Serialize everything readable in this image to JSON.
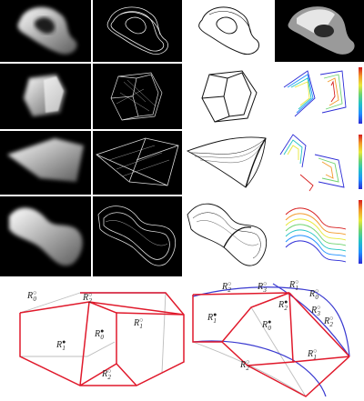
{
  "colors": {
    "cell_background": "#000000",
    "paper": "#ffffff",
    "partition_edge_red": "#e0192b",
    "partition_edge_blue": "#3a3ad0",
    "faint_edge_gray": "#bdbdbd",
    "colorbar": [
      "#2b2bd6",
      "#1e90ff",
      "#22c3c3",
      "#6fd36f",
      "#e8e83a",
      "#f39a2a",
      "#d71f1f"
    ]
  },
  "grid": {
    "rows": 4,
    "columns": [
      "rendered density",
      "boundary rendering",
      "line drawing",
      "colored contour plot"
    ],
    "shapes": [
      "twisted loop",
      "prism",
      "folded sheet",
      "bent twisted band"
    ]
  },
  "bottom_left_labels": {
    "r0": {
      "base": "R",
      "sub": "0",
      "sup": "○"
    },
    "r2_top": {
      "base": "R",
      "sub": "2",
      "sup": "○"
    },
    "r1_right": {
      "base": "R",
      "sub": "1",
      "sup": "○"
    },
    "r1_left": {
      "base": "R",
      "sub": "1",
      "sup": "●"
    },
    "r0_center": {
      "base": "R",
      "sub": "0",
      "sup": "●"
    },
    "r2_bottom": {
      "base": "R",
      "sub": "2",
      "sup": "○"
    }
  },
  "bottom_right_labels": {
    "r2_top": {
      "base": "R",
      "sub": "2",
      "sup": "○"
    },
    "r3_top": {
      "base": "R",
      "sub": "3",
      "sup": "○"
    },
    "r1_top": {
      "base": "R",
      "sub": "1",
      "sup": "○"
    },
    "r0_right": {
      "base": "R",
      "sub": "0",
      "sup": "○"
    },
    "r1_left": {
      "base": "R",
      "sub": "1",
      "sup": "●"
    },
    "r2_center": {
      "base": "R",
      "sub": "2",
      "sup": "●"
    },
    "r0_center": {
      "base": "R",
      "sub": "0",
      "sup": "●"
    },
    "r3_right": {
      "base": "R",
      "sub": "3",
      "sup": "○"
    },
    "r2_right": {
      "base": "R",
      "sub": "2",
      "sup": "○"
    },
    "r1_bottom_right": {
      "base": "R",
      "sub": "1",
      "sup": "○"
    },
    "r2_bottom": {
      "base": "R",
      "sub": "2",
      "sup": "○"
    }
  }
}
